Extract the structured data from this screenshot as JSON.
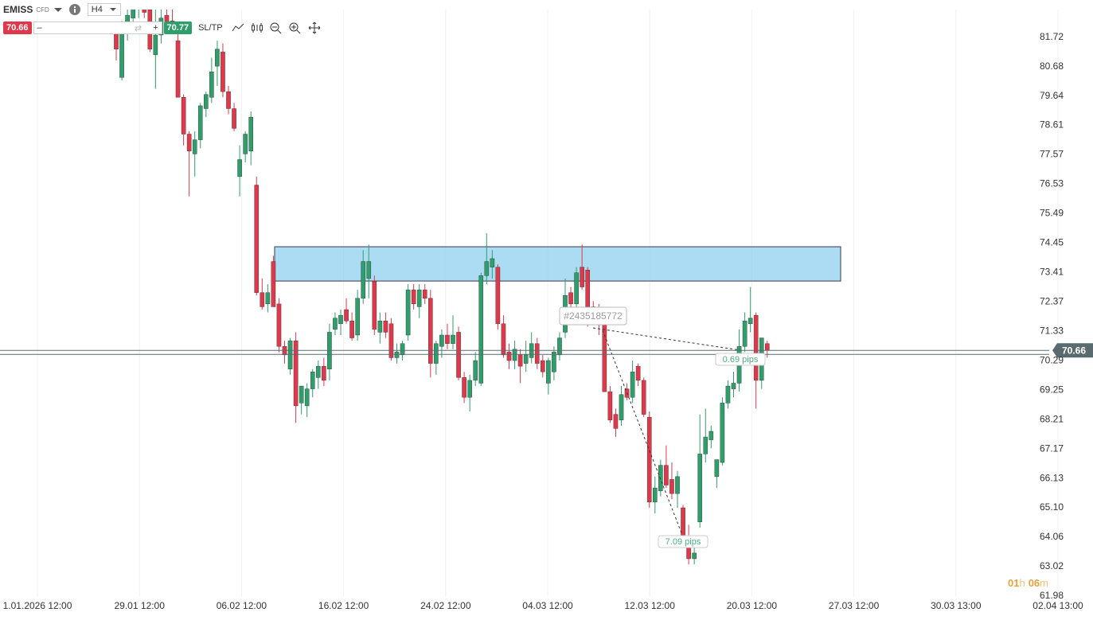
{
  "toolbar": {
    "symbol": "EMISS",
    "kind": "CFD",
    "timeframe": "H4",
    "bid": 70.66,
    "minus": "–",
    "plus": "+",
    "ask": 70.77,
    "sltp": "SL/TP"
  },
  "chart_data": {
    "type": "candlestick",
    "ylim": [
      61.95,
      82.7
    ],
    "yticks": [
      81.72,
      80.68,
      79.64,
      78.61,
      77.57,
      76.53,
      75.49,
      74.45,
      73.41,
      72.37,
      71.33,
      70.29,
      69.25,
      68.21,
      67.17,
      66.13,
      {
        "value": 65.1,
        "label": "65.10"
      },
      64.06,
      63.02,
      61.98
    ],
    "xticks": [
      "1.01.2026 12:00",
      "29.01 12:00",
      "06.02 12:00",
      "16.02 12:00",
      "24.02 12:00",
      "04.03 12:00",
      "12.03 12:00",
      "20.03 12:00",
      "27.03 12:00",
      "30.03 13:00",
      "02.04 13:00"
    ],
    "grid": true,
    "up_color": "#2e9e6b",
    "down_color": "#e0384b",
    "last_price": 70.66,
    "zone": {
      "top": 74.32,
      "bottom": 73.11,
      "color": "#8fd0f0"
    },
    "order_label": "#2435185772",
    "annotations": [
      "0.69 pips",
      "7.09 pips"
    ],
    "timer": [
      "01",
      "h",
      "06",
      "m"
    ],
    "candles": [
      [
        81.9,
        82.1,
        80.9,
        81.3
      ],
      [
        80.3,
        82.3,
        80.2,
        82.0
      ],
      [
        82.0,
        83,
        81.6,
        82.5
      ],
      [
        82.4,
        83,
        82,
        82.8
      ],
      [
        82.8,
        83.2,
        82.4,
        82.9
      ],
      [
        82.9,
        83.2,
        82.4,
        82.6
      ],
      [
        82.7,
        83,
        81.2,
        81.3
      ],
      [
        81.1,
        82.8,
        79.9,
        81.8
      ],
      [
        81.8,
        82.9,
        81.5,
        82.4
      ],
      [
        82.5,
        83,
        82,
        82.2
      ],
      [
        82.3,
        82.8,
        82,
        82.0
      ],
      [
        81.6,
        82,
        79.6,
        79.6
      ],
      [
        79.6,
        79.7,
        77.9,
        78.3
      ],
      [
        78.3,
        78.4,
        76.1,
        77.7
      ],
      [
        77.6,
        78.4,
        76.8,
        78.1
      ],
      [
        78.1,
        79.4,
        77.8,
        79.3
      ],
      [
        79.2,
        79.8,
        78.9,
        79.7
      ],
      [
        79.6,
        81.0,
        79.4,
        80.5
      ],
      [
        80.7,
        81.6,
        80.0,
        81.3
      ],
      [
        81.2,
        81.5,
        79.6,
        79.8
      ],
      [
        79.8,
        80.0,
        79.0,
        79.2
      ],
      [
        79.2,
        79.4,
        78.4,
        78.5
      ],
      [
        76.8,
        77.9,
        76.1,
        77.4
      ],
      [
        77.6,
        78.4,
        77.3,
        78.3
      ],
      [
        77.7,
        79.1,
        77.2,
        78.9
      ],
      [
        76.5,
        76.8,
        72.6,
        72.7
      ],
      [
        72.7,
        73.2,
        72.1,
        72.2
      ],
      [
        72.3,
        73.0,
        72.0,
        72.7
      ],
      [
        73.8,
        74.0,
        72.2,
        72.2
      ],
      [
        72.3,
        72.5,
        70.6,
        70.8
      ],
      [
        70.8,
        71.0,
        70.2,
        70.5
      ],
      [
        70.0,
        71.1,
        69.8,
        71.0
      ],
      [
        71.0,
        71.3,
        68.1,
        68.7
      ],
      [
        68.8,
        69.4,
        68.4,
        69.4
      ],
      [
        68.7,
        69.5,
        68.3,
        69.3
      ],
      [
        69.3,
        70.0,
        69.0,
        69.9
      ],
      [
        69.7,
        70.3,
        69.3,
        70.1
      ],
      [
        70.1,
        70.4,
        69.4,
        69.6
      ],
      [
        70.0,
        71.6,
        69.6,
        71.3
      ],
      [
        71.4,
        72.0,
        71.2,
        71.8
      ],
      [
        71.6,
        72.1,
        71.2,
        71.9
      ],
      [
        72.1,
        72.5,
        71.6,
        71.7
      ],
      [
        71.7,
        72.0,
        71.0,
        71.1
      ],
      [
        71.2,
        72.8,
        71.0,
        72.5
      ],
      [
        72.5,
        74.2,
        72.3,
        73.8
      ],
      [
        73.2,
        74.4,
        72.5,
        73.8
      ],
      [
        73.1,
        73.3,
        71.2,
        71.4
      ],
      [
        71.3,
        72.0,
        70.9,
        71.7
      ],
      [
        71.7,
        72.0,
        71.1,
        71.3
      ],
      [
        71.6,
        71.8,
        70.3,
        70.4
      ],
      [
        70.4,
        70.9,
        70.2,
        70.6
      ],
      [
        70.5,
        71.0,
        70.3,
        70.9
      ],
      [
        71.2,
        73.0,
        71.0,
        72.8
      ],
      [
        72.8,
        73.0,
        72.1,
        72.3
      ],
      [
        72.2,
        73.0,
        71.8,
        72.8
      ],
      [
        72.8,
        73.0,
        72.3,
        72.5
      ],
      [
        72.5,
        72.8,
        69.7,
        70.2
      ],
      [
        70.2,
        71.0,
        69.8,
        70.9
      ],
      [
        70.8,
        71.4,
        70.4,
        71.2
      ],
      [
        71.2,
        71.6,
        70.7,
        70.9
      ],
      [
        70.9,
        71.9,
        70.7,
        71.2
      ],
      [
        71.3,
        71.5,
        69.6,
        69.7
      ],
      [
        69.7,
        69.9,
        68.8,
        69.0
      ],
      [
        69.0,
        69.8,
        68.5,
        69.6
      ],
      [
        69.6,
        70.6,
        69.4,
        70.3
      ],
      [
        69.5,
        73.4,
        69.4,
        73.3
      ],
      [
        73.3,
        74.8,
        73.0,
        73.8
      ],
      [
        73.6,
        74.2,
        73.2,
        73.9
      ],
      [
        73.6,
        73.7,
        71.4,
        71.6
      ],
      [
        71.6,
        71.9,
        70.4,
        70.5
      ],
      [
        70.6,
        70.9,
        70.0,
        70.3
      ],
      [
        70.3,
        71.0,
        70.0,
        70.7
      ],
      [
        70.5,
        70.7,
        69.5,
        70.1
      ],
      [
        70.2,
        71.0,
        69.9,
        70.5
      ],
      [
        70.4,
        71.3,
        70.2,
        70.9
      ],
      [
        70.9,
        71.1,
        70.0,
        70.2
      ],
      [
        70.3,
        70.5,
        69.7,
        69.9
      ],
      [
        69.5,
        70.4,
        69.1,
        70.3
      ],
      [
        69.9,
        70.8,
        69.6,
        70.6
      ],
      [
        70.5,
        71.3,
        70.3,
        71.1
      ],
      [
        71.3,
        73.2,
        71.1,
        72.6
      ],
      [
        72.7,
        72.9,
        72.0,
        72.3
      ],
      [
        72.3,
        73.6,
        72.1,
        73.4
      ],
      [
        73.6,
        74.4,
        72.8,
        72.9
      ],
      [
        73.5,
        73.6,
        71.5,
        72.2
      ],
      [
        72.2,
        72.4,
        71.6,
        71.9
      ],
      [
        71.9,
        72.3,
        71.2,
        71.6
      ],
      [
        71.7,
        71.9,
        69.2,
        69.2
      ],
      [
        69.2,
        69.4,
        68.1,
        68.2
      ],
      [
        68.4,
        68.6,
        67.6,
        67.9
      ],
      [
        68.2,
        69.4,
        68.0,
        69.1
      ],
      [
        69.3,
        69.5,
        68.9,
        69.0
      ],
      [
        69.0,
        70.3,
        68.8,
        69.9
      ],
      [
        70.1,
        70.2,
        69.4,
        69.6
      ],
      [
        69.6,
        69.7,
        68.3,
        68.4
      ],
      [
        68.3,
        68.5,
        65.1,
        65.3
      ],
      [
        65.3,
        66.2,
        64.9,
        65.8
      ],
      [
        65.7,
        66.8,
        65.5,
        66.6
      ],
      [
        66.6,
        67.3,
        65.8,
        65.9
      ],
      [
        66.1,
        66.7,
        65.4,
        65.6
      ],
      [
        65.6,
        66.4,
        65.1,
        66.2
      ],
      [
        65.1,
        65.2,
        63.9,
        64.1
      ],
      [
        64.1,
        64.5,
        63.1,
        63.3
      ],
      [
        63.3,
        63.8,
        63.1,
        63.5
      ],
      [
        64.6,
        68.4,
        64.4,
        67.0
      ],
      [
        67.0,
        68.6,
        66.7,
        67.6
      ],
      [
        67.5,
        68.0,
        67.2,
        67.8
      ],
      [
        66.2,
        66.8,
        65.8,
        66.8
      ],
      [
        66.7,
        69.0,
        66.6,
        68.8
      ],
      [
        68.8,
        69.6,
        68.6,
        69.4
      ],
      [
        69.3,
        69.9,
        69.0,
        69.5
      ],
      [
        69.5,
        71.4,
        69.2,
        70.8
      ],
      [
        70.8,
        72.0,
        70.6,
        71.7
      ],
      [
        71.6,
        72.9,
        71.3,
        71.8
      ],
      [
        71.9,
        72.0,
        68.6,
        69.6
      ],
      [
        69.6,
        71.1,
        69.3,
        71.1
      ],
      [
        70.9,
        71.0,
        70.4,
        70.66
      ]
    ]
  }
}
